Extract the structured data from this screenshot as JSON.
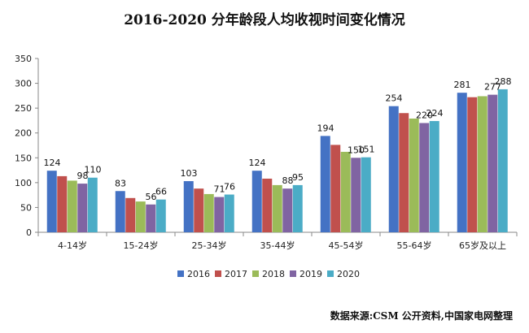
{
  "chart_data": {
    "type": "bar",
    "title": "2016-2020 分年龄段人均收视时间变化情况",
    "categories": [
      "4-14岁",
      "15-24岁",
      "25-34岁",
      "35-44岁",
      "45-54岁",
      "55-64岁",
      "65岁及以上"
    ],
    "series": [
      {
        "name": "2016",
        "color": "#4472C4",
        "values": [
          124,
          83,
          103,
          124,
          194,
          254,
          281
        ]
      },
      {
        "name": "2017",
        "color": "#C0504D",
        "values": [
          113,
          69,
          88,
          108,
          176,
          240,
          272
        ]
      },
      {
        "name": "2018",
        "color": "#9BBB59",
        "values": [
          104,
          62,
          77,
          95,
          162,
          229,
          274
        ]
      },
      {
        "name": "2019",
        "color": "#8064A2",
        "values": [
          98,
          56,
          71,
          88,
          150,
          220,
          277
        ]
      },
      {
        "name": "2020",
        "color": "#4BACC6",
        "values": [
          110,
          66,
          76,
          95,
          151,
          224,
          288
        ]
      }
    ],
    "labels": [
      [
        "124",
        "",
        "",
        "98",
        "110"
      ],
      [
        "83",
        "",
        "",
        "56",
        "66"
      ],
      [
        "103",
        "",
        "",
        "71",
        "76"
      ],
      [
        "124",
        "",
        "",
        "88",
        "95"
      ],
      [
        "194",
        "",
        "",
        "150",
        "151"
      ],
      [
        "254",
        "",
        "",
        "220",
        "224"
      ],
      [
        "281",
        "",
        "",
        "277",
        "288"
      ]
    ],
    "ylim": [
      0,
      350
    ],
    "yticks": [
      "0",
      "50",
      "100",
      "150",
      "200",
      "250",
      "300",
      "350"
    ],
    "xlabel": "",
    "ylabel": "",
    "legend_position": "bottom",
    "grid": false
  },
  "source_note": "数据来源:CSM 公开资料,中国家电网整理"
}
